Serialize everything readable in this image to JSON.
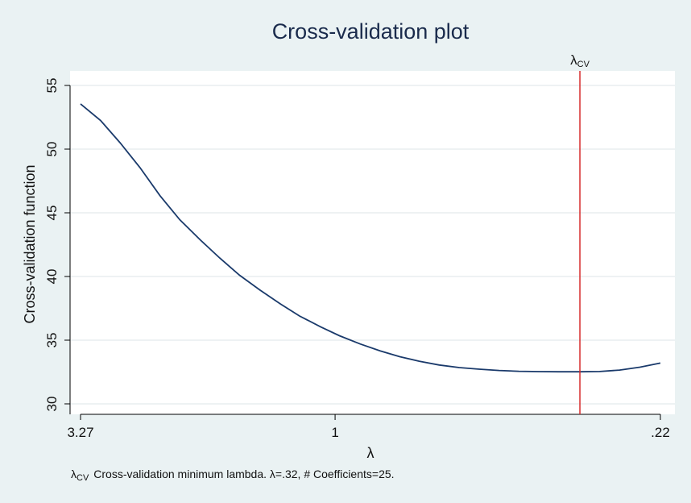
{
  "chart_data": {
    "type": "line",
    "title": "Cross-validation plot",
    "xlabel": "λ",
    "ylabel": "Cross-validation function",
    "x_scale": "log-reversed",
    "xlim": [
      3.27,
      0.22
    ],
    "ylim": [
      30,
      55
    ],
    "x_ticks": [
      {
        "value": 3.27,
        "label": "3.27"
      },
      {
        "value": 1,
        "label": "1"
      },
      {
        "value": 0.22,
        "label": ".22"
      }
    ],
    "y_ticks": [
      30,
      35,
      40,
      45,
      50,
      55
    ],
    "grid": "horizontal",
    "series": [
      {
        "color": "#1a3a6b",
        "x": [
          3.27,
          2.98,
          2.72,
          2.48,
          2.26,
          2.06,
          1.87,
          1.71,
          1.56,
          1.42,
          1.29,
          1.18,
          1.07,
          0.98,
          0.89,
          0.81,
          0.74,
          0.676,
          0.616,
          0.561,
          0.511,
          0.466,
          0.425,
          0.387,
          0.353,
          0.32,
          0.292,
          0.266,
          0.242,
          0.22
        ],
        "y": [
          53.55,
          52.25,
          50.5,
          48.55,
          46.35,
          44.45,
          42.85,
          41.45,
          40.1,
          38.95,
          37.85,
          36.9,
          36.05,
          35.35,
          34.7,
          34.15,
          33.7,
          33.35,
          33.05,
          32.85,
          32.72,
          32.62,
          32.56,
          32.53,
          32.52,
          32.52,
          32.54,
          32.65,
          32.88,
          33.2
        ]
      }
    ],
    "reference_line": {
      "x": 0.32,
      "label": "λ",
      "label_subscript": "CV",
      "color": "#d62728"
    },
    "note": {
      "symbol": "λ",
      "symbol_subscript": "CV",
      "text": "Cross-validation minimum lambda.  λ=.32, # Coefficients=25."
    }
  }
}
